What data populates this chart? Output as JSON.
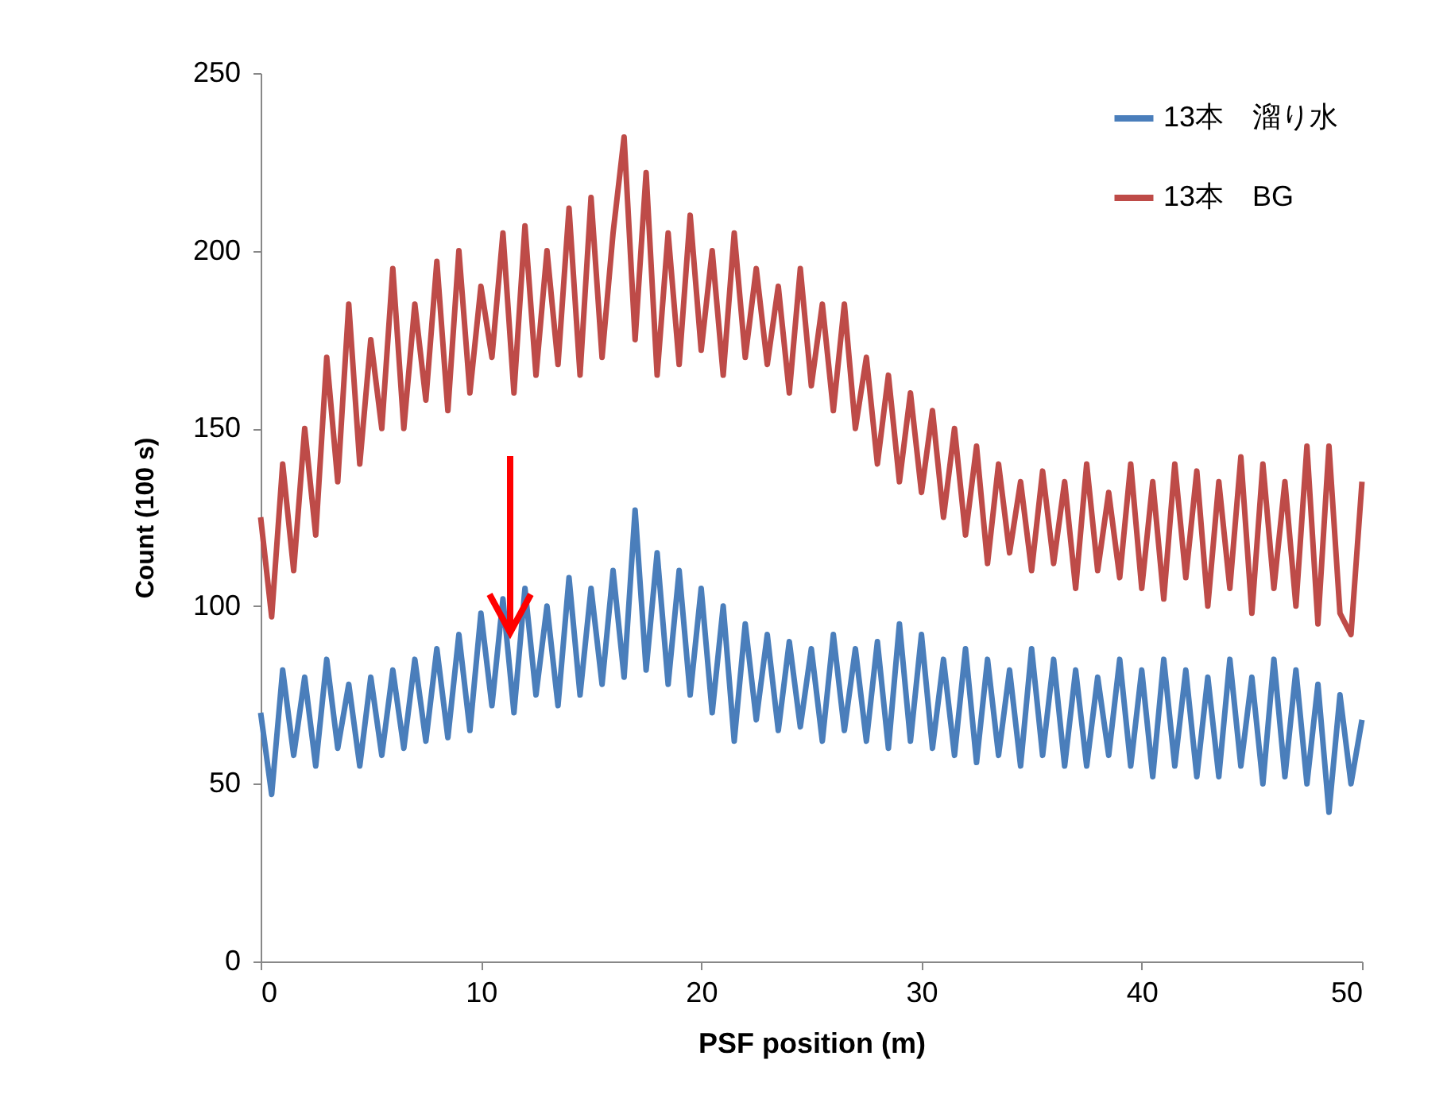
{
  "chart_data": {
    "type": "line",
    "xlabel": "PSF position (m)",
    "ylabel": "Count (100 s)",
    "x": [
      0,
      0.5,
      1,
      1.5,
      2,
      2.5,
      3,
      3.5,
      4,
      4.5,
      5,
      5.5,
      6,
      6.5,
      7,
      7.5,
      8,
      8.5,
      9,
      9.5,
      10,
      10.5,
      11,
      11.5,
      12,
      12.5,
      13,
      13.5,
      14,
      14.5,
      15,
      15.5,
      16,
      16.5,
      17,
      17.5,
      18,
      18.5,
      19,
      19.5,
      20,
      20.5,
      21,
      21.5,
      22,
      22.5,
      23,
      23.5,
      24,
      24.5,
      25,
      25.5,
      26,
      26.5,
      27,
      27.5,
      28,
      28.5,
      29,
      29.5,
      30,
      30.5,
      31,
      31.5,
      32,
      32.5,
      33,
      33.5,
      34,
      34.5,
      35,
      35.5,
      36,
      36.5,
      37,
      37.5,
      38,
      38.5,
      39,
      39.5,
      40,
      40.5,
      41,
      41.5,
      42,
      42.5,
      43,
      43.5,
      44,
      44.5,
      45,
      45.5,
      46,
      46.5,
      47,
      47.5,
      48,
      48.5,
      49,
      49.5,
      50
    ],
    "series": [
      {
        "name": "13本　溜り水",
        "color": "#4a7ebb",
        "values": [
          70,
          47,
          82,
          58,
          80,
          55,
          85,
          60,
          78,
          55,
          80,
          58,
          82,
          60,
          85,
          62,
          88,
          63,
          92,
          65,
          98,
          72,
          102,
          70,
          105,
          75,
          100,
          72,
          108,
          75,
          105,
          78,
          110,
          80,
          127,
          82,
          115,
          78,
          110,
          75,
          105,
          70,
          100,
          62,
          95,
          68,
          92,
          65,
          90,
          66,
          88,
          62,
          92,
          65,
          88,
          62,
          90,
          60,
          95,
          62,
          92,
          60,
          85,
          58,
          88,
          56,
          85,
          58,
          82,
          55,
          88,
          58,
          85,
          55,
          82,
          55,
          80,
          58,
          85,
          55,
          82,
          52,
          85,
          55,
          82,
          52,
          80,
          52,
          85,
          55,
          80,
          50,
          85,
          52,
          82,
          50,
          78,
          42,
          75,
          50,
          68
        ]
      },
      {
        "name": "13本　BG",
        "color": "#be4b48",
        "values": [
          125,
          97,
          140,
          110,
          150,
          120,
          170,
          135,
          185,
          140,
          175,
          150,
          195,
          150,
          185,
          158,
          197,
          155,
          200,
          160,
          190,
          170,
          205,
          160,
          207,
          165,
          200,
          168,
          212,
          165,
          215,
          170,
          205,
          232,
          175,
          222,
          165,
          205,
          168,
          210,
          172,
          200,
          165,
          205,
          170,
          195,
          168,
          190,
          160,
          195,
          162,
          185,
          155,
          185,
          150,
          170,
          140,
          165,
          135,
          160,
          132,
          155,
          125,
          150,
          120,
          145,
          112,
          140,
          115,
          135,
          110,
          138,
          112,
          135,
          105,
          140,
          110,
          132,
          108,
          140,
          105,
          135,
          102,
          140,
          108,
          138,
          100,
          135,
          105,
          142,
          98,
          140,
          105,
          135,
          100,
          145,
          95,
          145,
          98,
          92,
          135
        ]
      }
    ],
    "xlim": [
      0,
      50
    ],
    "xticks": [
      0,
      10,
      20,
      30,
      40,
      50
    ],
    "ylim": [
      0,
      250
    ],
    "yticks": [
      0,
      50,
      100,
      150,
      200,
      250
    ],
    "legend": "top right",
    "grid": false
  }
}
